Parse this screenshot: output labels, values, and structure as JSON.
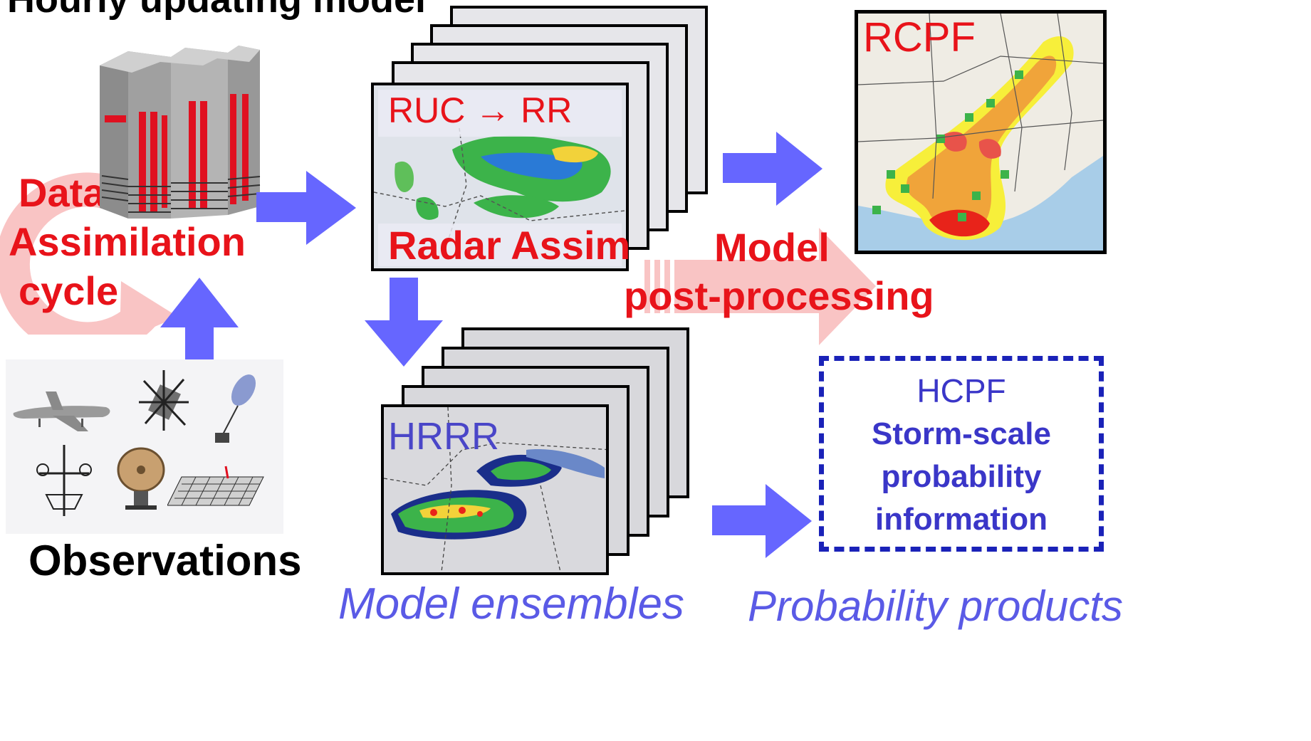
{
  "title": "Hourly updating model",
  "labels": {
    "da_line1": "Data",
    "da_line2": "Assimilation",
    "da_line3": "cycle",
    "observations": "Observations",
    "ruc_rr": "RUC → RR",
    "radar_assim": "Radar Assim",
    "hrrr": "HRRR",
    "model_ensembles": "Model ensembles",
    "model_pp_line1": "Model",
    "model_pp_line2": "post-processing",
    "rcpf": "RCPF",
    "hcpf": "HCPF",
    "hcpf_desc_line1": "Storm-scale",
    "hcpf_desc_line2": "probability",
    "hcpf_desc_line3": "information",
    "probability_products": "Probability products"
  },
  "icons": [
    "supercomputer-icon",
    "aircraft-icon",
    "satellite-icon",
    "weather-balloon-icon",
    "weather-station-icon",
    "radar-dish-icon",
    "surface-grid-icon"
  ],
  "colors": {
    "arrow_blue": "#6666ff",
    "label_red": "#e8131a",
    "pink_arrow": "#f9c4c4",
    "hcpf_blue": "#3a36c8",
    "italic_blue": "#5a5ae6",
    "dashed_border": "#1a22b8"
  }
}
